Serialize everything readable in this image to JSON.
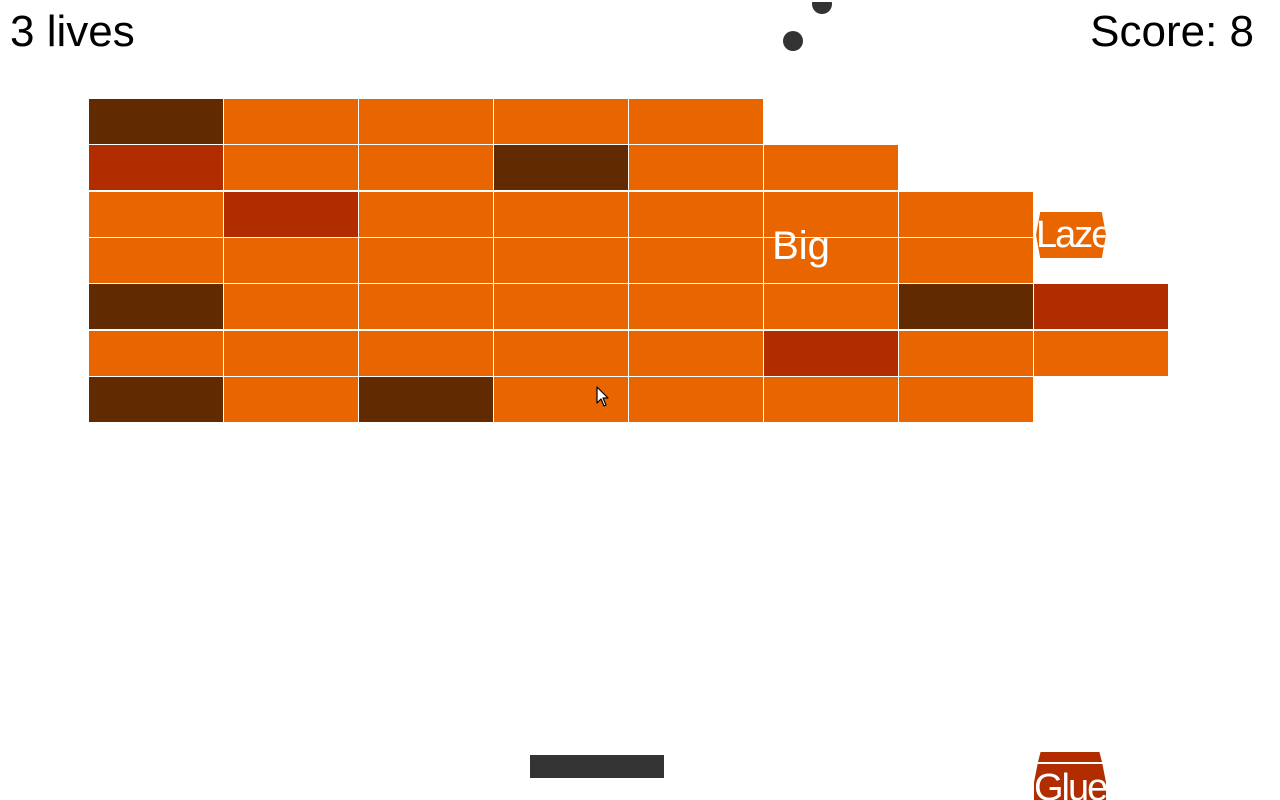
{
  "hud": {
    "lives_label": "3 lives",
    "score_label": "Score: 8"
  },
  "colors": {
    "orange": "#e86500",
    "red": "#b12d00",
    "brown": "#622a00",
    "ball": "#333333",
    "paddle": "#333333",
    "background": "#ffffff"
  },
  "bricks": {
    "rows": [
      [
        "brown",
        "orange",
        "orange",
        "orange",
        "orange",
        null,
        null,
        null
      ],
      [
        "red",
        "orange",
        "orange",
        "brown",
        "orange",
        "orange",
        null,
        null
      ],
      [
        "orange",
        "red",
        "orange",
        "orange",
        "orange",
        "orange",
        "orange",
        null
      ],
      [
        "orange",
        "orange",
        "orange",
        "orange",
        "orange",
        "orange",
        "orange",
        null
      ],
      [
        "brown",
        "orange",
        "orange",
        "orange",
        "orange",
        "orange",
        "brown",
        "red"
      ],
      [
        "orange",
        "orange",
        "orange",
        "orange",
        "orange",
        "red",
        "orange",
        "orange"
      ],
      [
        "brown",
        "orange",
        "brown",
        "orange",
        "orange",
        "orange",
        "orange",
        null
      ]
    ]
  },
  "powerups": {
    "lazer": {
      "label": "Lazer",
      "color": "orange"
    },
    "big": {
      "label": "Big"
    },
    "glue": {
      "label": "Glue",
      "color": "red"
    }
  },
  "balls": [
    {
      "name": "ball-1"
    },
    {
      "name": "ball-2"
    }
  ]
}
